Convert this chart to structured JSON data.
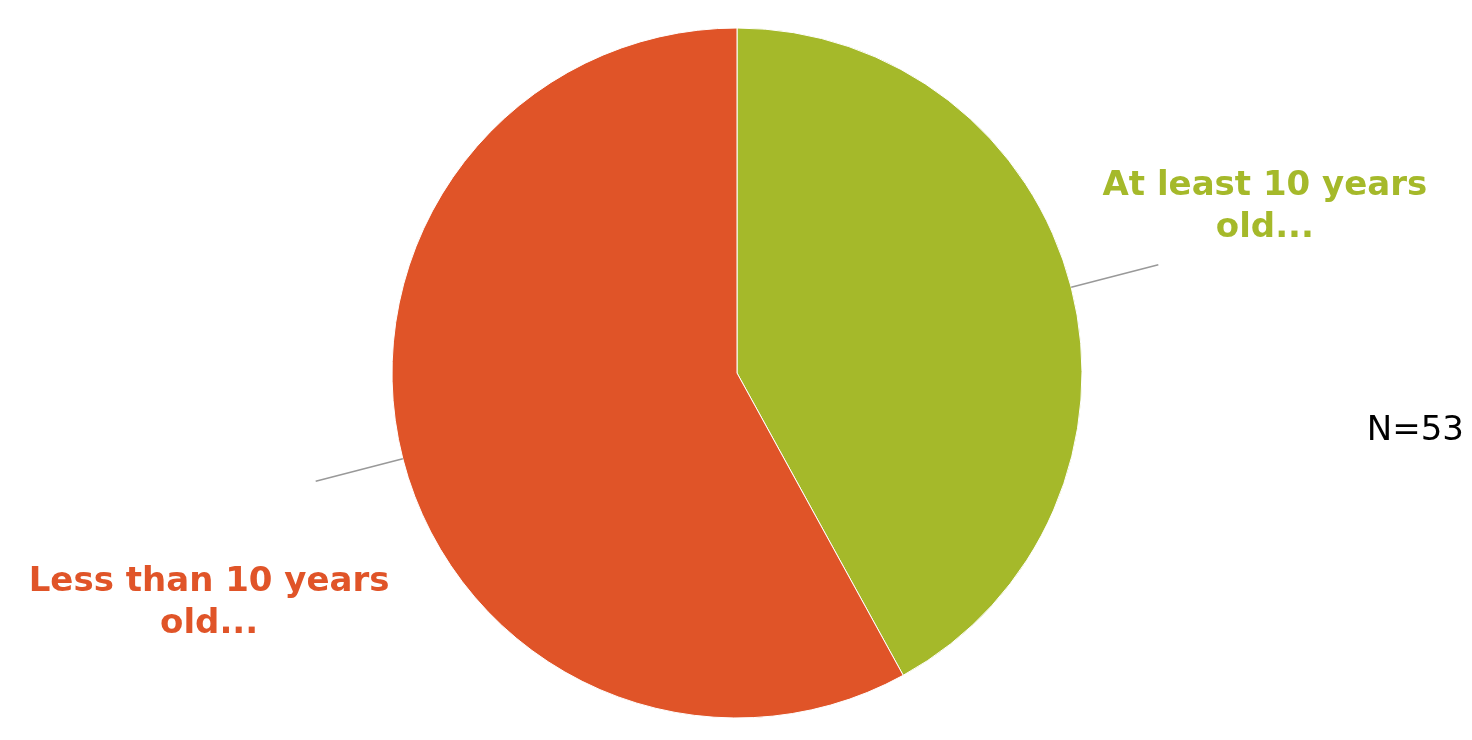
{
  "chart_data": {
    "type": "pie",
    "categories": [
      "At least 10 years old...",
      "Less than 10 years old..."
    ],
    "values": [
      42,
      58
    ],
    "colors": [
      "#a5b92a",
      "#e05428"
    ],
    "annotations": [
      "N=53"
    ],
    "legend": false
  }
}
